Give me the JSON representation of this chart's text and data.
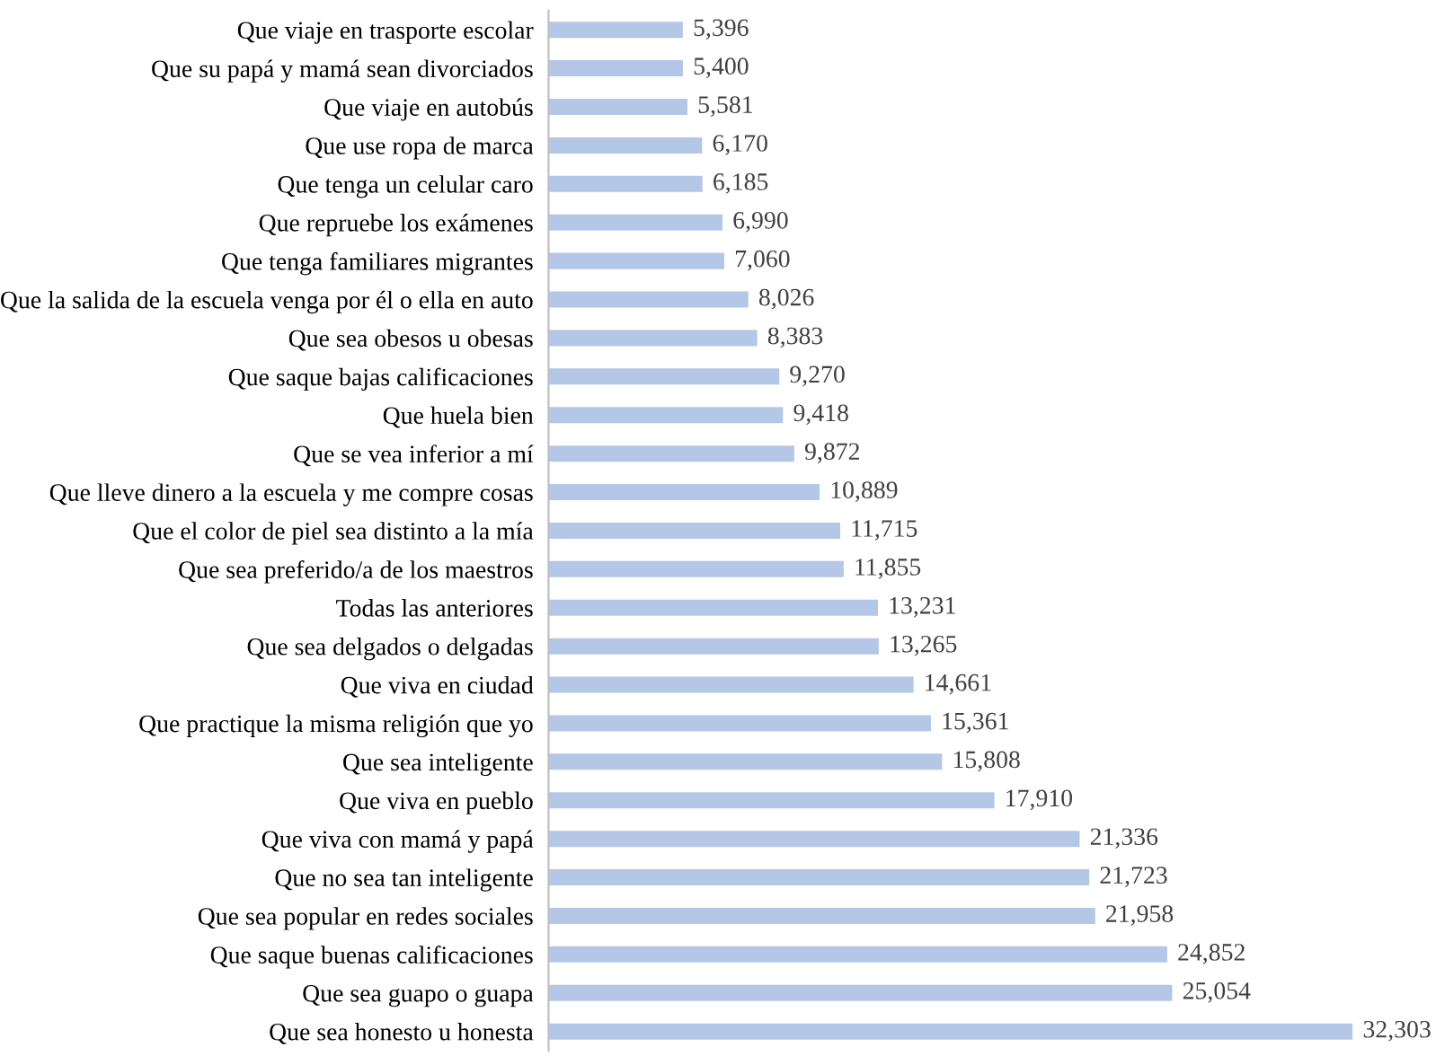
{
  "chart_data": {
    "type": "bar",
    "orientation": "horizontal",
    "color": "#b4c7e7",
    "categories": [
      "Que viaje en trasporte escolar",
      "Que su papá y mamá sean divorciados",
      "Que viaje en autobús",
      "Que use ropa de marca",
      "Que tenga un celular caro",
      "Que repruebe los exámenes",
      "Que tenga familiares migrantes",
      "Que la salida de la escuela venga por él o ella en auto",
      "Que sea obesos u obesas",
      "Que saque bajas calificaciones",
      "Que huela bien",
      "Que se vea inferior a mí",
      "Que lleve dinero a la escuela y me compre cosas",
      "Que el color de piel sea distinto a la mía",
      "Que sea preferido/a de los maestros",
      "Todas las anteriores",
      "Que sea delgados o delgadas",
      "Que viva en ciudad",
      "Que practique la misma religión que yo",
      "Que sea inteligente",
      "Que viva en pueblo",
      "Que viva con mamá y papá",
      "Que no sea tan inteligente",
      "Que sea popular en redes sociales",
      "Que saque buenas calificaciones",
      "Que sea guapo o guapa",
      "Que sea honesto u honesta"
    ],
    "values": [
      5396,
      5400,
      5581,
      6170,
      6185,
      6990,
      7060,
      8026,
      8383,
      9270,
      9418,
      9872,
      10889,
      11715,
      11855,
      13231,
      13265,
      14661,
      15361,
      15808,
      17910,
      21336,
      21723,
      21958,
      24852,
      25054,
      32303
    ],
    "value_labels": [
      "5,396",
      "5,400",
      "5,581",
      "6,170",
      "6,185",
      "6,990",
      "7,060",
      "8,026",
      "8,383",
      "9,270",
      "9,418",
      "9,872",
      "10,889",
      "11,715",
      "11,855",
      "13,231",
      "13,265",
      "14,661",
      "15,361",
      "15,808",
      "17,910",
      "21,336",
      "21,723",
      "21,958",
      "24,852",
      "25,054",
      "32,303"
    ],
    "grid": false,
    "legend": false
  }
}
